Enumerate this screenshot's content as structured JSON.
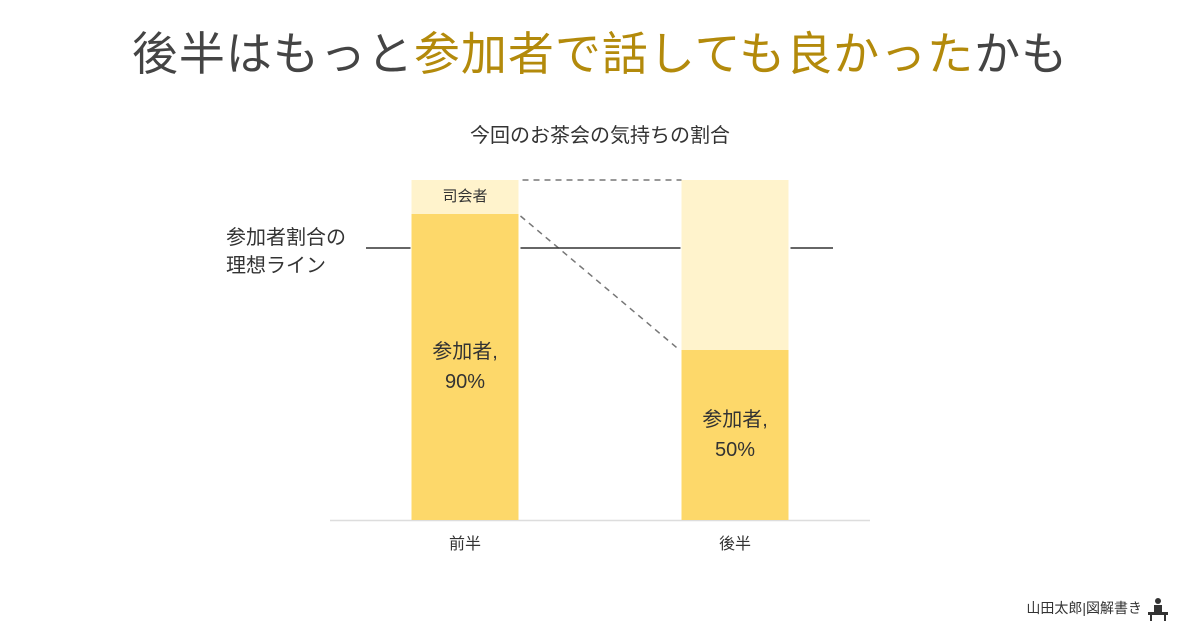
{
  "chart_data": {
    "type": "stacked-bar",
    "title_parts": [
      "後半はもっと",
      "参加者で話しても良かった",
      "かも"
    ],
    "subtitle": "今回のお茶会の気持ちの割合",
    "categories": [
      "前半",
      "後半"
    ],
    "series": [
      {
        "name": "参加者",
        "color": "#fdd86a",
        "values": [
          90,
          50
        ],
        "value_labels": [
          "参加者,\n90%",
          "参加者,\n50%"
        ]
      },
      {
        "name": "司会者",
        "color": "#fff3cc",
        "values": [
          10,
          50
        ]
      }
    ],
    "ylim": [
      0,
      100
    ],
    "reference_line": {
      "value": 80,
      "label": "参加者割合の\n理想ライン"
    },
    "credit": "山田太郎|図解書き"
  }
}
